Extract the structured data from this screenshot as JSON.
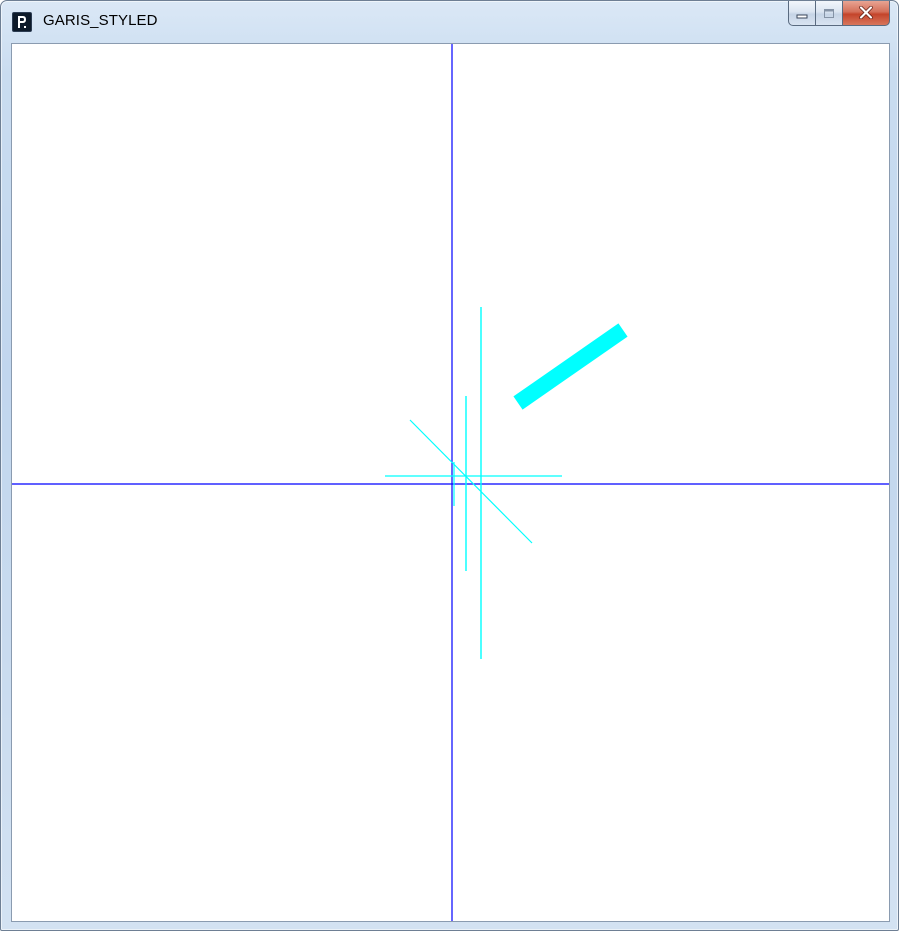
{
  "window": {
    "title": "GARIS_STYLED",
    "icon": "processing-p-icon",
    "caption_buttons": {
      "minimize": "minimize-icon",
      "maximize": "maximize-icon",
      "close": "close-icon"
    }
  },
  "canvas": {
    "background": "#ffffff",
    "axis_color": "#0000ff",
    "shape_color": "#00ffff"
  }
}
